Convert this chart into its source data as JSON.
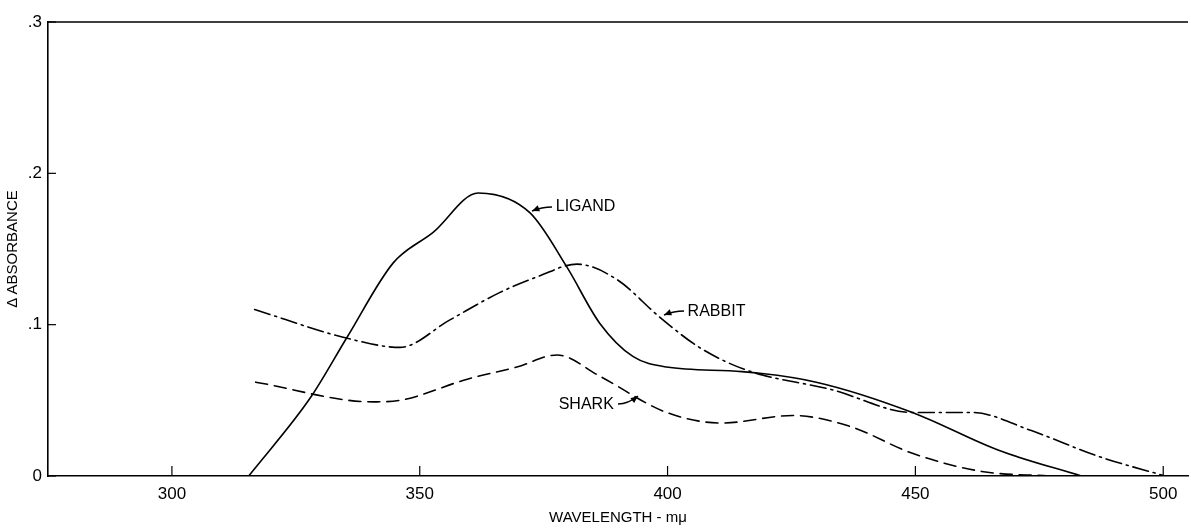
{
  "chart_data": {
    "type": "line",
    "xlabel": "WAVELENGTH - mμ",
    "ylabel": "Δ ABSORBANCE",
    "xlim": [
      275,
      505
    ],
    "xticks": [
      300,
      350,
      400,
      450,
      500
    ],
    "ylim": [
      0,
      0.3
    ],
    "yticks": [
      0,
      {
        "value": 0.1,
        "label": ".1"
      },
      {
        "value": 0.2,
        "label": ".2"
      },
      {
        "value": 0.3,
        "label": ".3"
      }
    ],
    "grid": false,
    "legend": false,
    "marker": "none",
    "series": [
      {
        "color": "#000000",
        "line_style": "solid",
        "x": [
          315.5,
          328,
          335.4,
          344.7,
          352.7,
          361.8,
          372.2,
          379.7,
          386.3,
          393,
          399.8,
          415,
          430,
          449.4,
          466.8,
          483.5
        ],
        "values": [
          0,
          0.052,
          0.092,
          0.141,
          0.161,
          0.187,
          0.174,
          0.138,
          0.101,
          0.079,
          0.072,
          0.069,
          0.062,
          0.042,
          0.017,
          0
        ]
      },
      {
        "color": "#000000",
        "line_style": "dashdot",
        "x": [
          316.7,
          335.4,
          346,
          356,
          366,
          374,
          381.7,
          389.7,
          398.4,
          406.4,
          415.9,
          433.2,
          449.4,
          461.4,
          473.4,
          486.9,
          500.4
        ],
        "values": [
          0.11,
          0.091,
          0.085,
          0.103,
          0.121,
          0.132,
          0.14,
          0.13,
          0.105,
          0.085,
          0.07,
          0.057,
          0.042,
          0.042,
          0.03,
          0.013,
          0
        ]
      },
      {
        "color": "#000000",
        "line_style": "dashed",
        "x": [
          316.9,
          340.6,
          346,
          359.6,
          369.6,
          377.7,
          386.3,
          399.8,
          411,
          425.2,
          436.6,
          449.4,
          463.4,
          476.9
        ],
        "values": [
          0.062,
          0.049,
          0.05,
          0.064,
          0.072,
          0.08,
          0.066,
          0.042,
          0.035,
          0.04,
          0.033,
          0.015,
          0.003,
          0
        ]
      }
    ],
    "annotations": [
      {
        "text": "LIGAND",
        "x": 372.2,
        "y": 0.174
      },
      {
        "text": "RABBIT",
        "x": 398.8,
        "y": 0.105
      },
      {
        "text": "SHARK",
        "x": 394.4,
        "y": 0.054
      }
    ]
  }
}
